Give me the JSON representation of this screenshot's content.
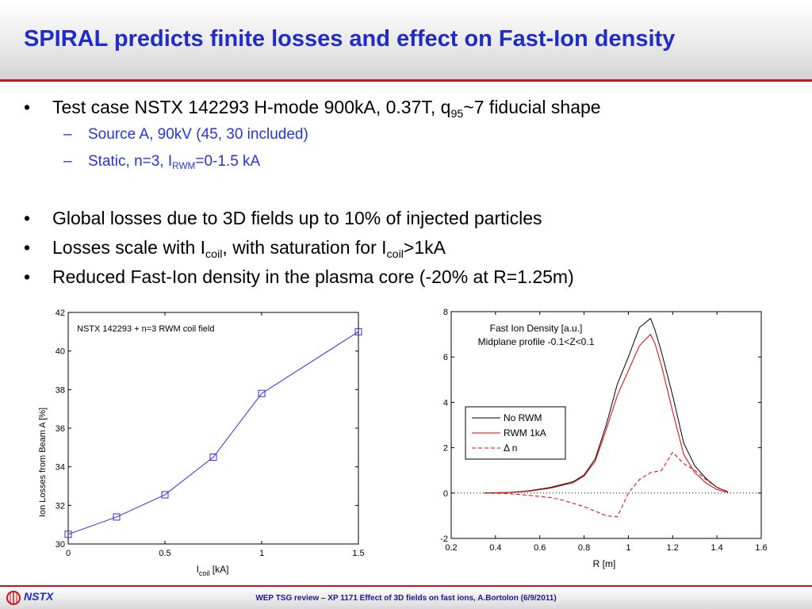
{
  "slide": {
    "title": "SPIRAL predicts finite losses and effect on Fast-Ion density",
    "bullets": {
      "b1": {
        "text": "Test case NSTX 142293 H-mode 900kA, 0.37T, q",
        "sub": "95",
        "tail": "~7 fiducial shape"
      },
      "s1": "Source A, 90kV (45, 30 included)",
      "s2": {
        "pre": "Static, n=3, I",
        "sub": "RWM",
        "tail": "=0-1.5 kA"
      },
      "b2": "Global losses due to 3D fields up to 10% of injected particles",
      "b3": {
        "pre": "Losses scale with I",
        "sub1": "coil",
        "mid": ", with saturation for I",
        "sub2": "coil",
        "tail": ">1kA"
      },
      "b4": "Reduced Fast-Ion density in the plasma core (-20% at R=1.25m)"
    },
    "bullet_glyph": "•",
    "dash_glyph": "–",
    "colors": {
      "title": "#1f2cc8",
      "accent_red": "#c8141e",
      "sub_bullet": "#2436d8"
    }
  },
  "chart_data": [
    {
      "type": "line",
      "annotation": "NSTX 142293 + n=3 RWM coil field",
      "xlabel": {
        "pre": "I",
        "sub": "coil",
        "post": " [kA]"
      },
      "ylabel": "Ion Losses from Beam A [%]",
      "xlim": [
        0,
        1.5
      ],
      "ylim": [
        30,
        42
      ],
      "xticks": [
        "0",
        "0.5",
        "1",
        "1.5"
      ],
      "yticks": [
        "30",
        "32",
        "34",
        "36",
        "38",
        "40",
        "42"
      ],
      "series": [
        {
          "x": [
            0,
            0.25,
            0.5,
            0.75,
            1.0,
            1.5
          ],
          "values": [
            30.5,
            31.4,
            32.55,
            34.5,
            37.8,
            41.0
          ],
          "color": "#2e2ee6",
          "marker": "square"
        }
      ]
    },
    {
      "type": "line",
      "annotation": [
        "Fast Ion Density [a.u.]",
        "Midplane profile -0.1<Z<0.1"
      ],
      "xlabel": "R [m]",
      "ylabel": "",
      "xlim": [
        0.2,
        1.6
      ],
      "ylim": [
        -2,
        8
      ],
      "xticks": [
        "0.2",
        "0.4",
        "0.6",
        "0.8",
        "1",
        "1.2",
        "1.4",
        "1.6"
      ],
      "yticks": [
        "-2",
        "0",
        "2",
        "4",
        "6",
        "8"
      ],
      "legend_position": "center-left",
      "zero_line": "dotted",
      "series": [
        {
          "name": "No RWM",
          "color": "#000000",
          "dash": "solid",
          "x": [
            0.35,
            0.45,
            0.55,
            0.65,
            0.75,
            0.8,
            0.85,
            0.9,
            0.95,
            1.0,
            1.05,
            1.1,
            1.12,
            1.15,
            1.2,
            1.25,
            1.3,
            1.35,
            1.4,
            1.45
          ],
          "values": [
            0.0,
            0.02,
            0.1,
            0.25,
            0.5,
            0.8,
            1.5,
            3.0,
            4.8,
            6.0,
            7.3,
            7.7,
            7.2,
            6.2,
            4.3,
            2.2,
            1.2,
            0.65,
            0.25,
            0.05
          ]
        },
        {
          "name": "RWM 1kA",
          "color": "#e60000",
          "dash": "solid",
          "x": [
            0.35,
            0.45,
            0.55,
            0.65,
            0.75,
            0.8,
            0.85,
            0.9,
            0.95,
            1.0,
            1.05,
            1.1,
            1.12,
            1.15,
            1.2,
            1.25,
            1.3,
            1.35,
            1.4,
            1.45
          ],
          "values": [
            0.0,
            0.02,
            0.08,
            0.22,
            0.45,
            0.75,
            1.4,
            2.8,
            4.3,
            5.4,
            6.5,
            7.0,
            6.6,
            5.6,
            3.6,
            1.7,
            0.9,
            0.45,
            0.15,
            0.03
          ]
        },
        {
          "name": "Δ n",
          "color": "#e60000",
          "dash": "dashed",
          "x": [
            0.35,
            0.45,
            0.55,
            0.6,
            0.65,
            0.7,
            0.75,
            0.8,
            0.85,
            0.9,
            0.95,
            1.0,
            1.05,
            1.1,
            1.15,
            1.2,
            1.25,
            1.3,
            1.35,
            1.4,
            1.45
          ],
          "values": [
            0.0,
            -0.02,
            -0.1,
            -0.15,
            -0.2,
            -0.3,
            -0.45,
            -0.6,
            -0.8,
            -1.0,
            -1.05,
            0.0,
            0.6,
            0.9,
            1.0,
            1.8,
            1.3,
            1.0,
            0.6,
            0.25,
            0.05
          ]
        }
      ]
    }
  ],
  "footer": {
    "logo": "NSTX",
    "text": "WEP TSG review – XP 1171 Effect of 3D fields on fast ions, A.Bortolon (6/9/2011)"
  }
}
